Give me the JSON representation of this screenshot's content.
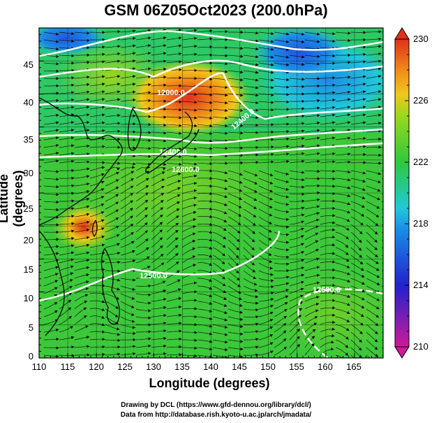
{
  "title": "GSM 06Z05Oct2023 (200.0hPa)",
  "axes": {
    "xlabel": "Longitude (degrees)",
    "ylabel": "Latitude  (degrees)",
    "xticks": [
      "110",
      "115",
      "120",
      "125",
      "130",
      "135",
      "140",
      "145",
      "150",
      "155",
      "160",
      "165"
    ],
    "yticks": [
      "45",
      "40",
      "35",
      "30",
      "25",
      "20",
      "15",
      "10",
      "5",
      "0"
    ],
    "xlim": [
      110,
      170
    ],
    "ylim": [
      0,
      50
    ]
  },
  "colorbar": {
    "ticks": [
      "230",
      "226",
      "222",
      "218",
      "214",
      "210"
    ],
    "range": [
      210,
      230
    ],
    "colors": [
      "#cc1a99",
      "#2222cc",
      "#1a8ce6",
      "#22c8d8",
      "#2ec83c",
      "#9ad81e",
      "#f0c81a",
      "#f08a1a",
      "#e0301a"
    ]
  },
  "contours": {
    "labels": [
      "12000.0",
      "12400.0",
      "12400.0",
      "12600.0",
      "12500.0",
      "12600.0"
    ]
  },
  "credits": {
    "line1": "Drawing by DCL (https://www.gfd-dennou.org/library/dcl/)",
    "line2": "Data from http://database.rish.kyoto-u.ac.jp/arch/jmadata/"
  }
}
